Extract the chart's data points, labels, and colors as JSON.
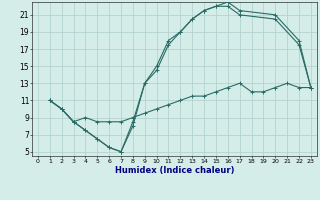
{
  "title": "",
  "xlabel": "Humidex (Indice chaleur)",
  "xlim": [
    -0.5,
    23.5
  ],
  "ylim": [
    4.5,
    22.5
  ],
  "xtick_labels": [
    "0",
    "1",
    "2",
    "3",
    "4",
    "5",
    "6",
    "7",
    "8",
    "9",
    "10",
    "11",
    "12",
    "13",
    "14",
    "15",
    "16",
    "17",
    "18",
    "19",
    "20",
    "21",
    "22",
    "23"
  ],
  "xtick_vals": [
    0,
    1,
    2,
    3,
    4,
    5,
    6,
    7,
    8,
    9,
    10,
    11,
    12,
    13,
    14,
    15,
    16,
    17,
    18,
    19,
    20,
    21,
    22,
    23
  ],
  "ytick_vals": [
    5,
    7,
    9,
    11,
    13,
    15,
    17,
    19,
    21
  ],
  "bg_color": "#d5ede8",
  "line_color": "#2a6b65",
  "grid_color": "#aed0cb",
  "line1_x": [
    1,
    2,
    3,
    4,
    5,
    6,
    7,
    8,
    9,
    10,
    11,
    12,
    13,
    14,
    15,
    16,
    17,
    20,
    22,
    23
  ],
  "line1_y": [
    11,
    10,
    8.5,
    7.5,
    6.5,
    5.5,
    5,
    8.5,
    13,
    15,
    18,
    19,
    20.5,
    21.5,
    22,
    22.5,
    21.5,
    21,
    18,
    12.5
  ],
  "line2_x": [
    1,
    2,
    3,
    4,
    5,
    6,
    7,
    8,
    9,
    10,
    11,
    12,
    13,
    14,
    15,
    16,
    17,
    20,
    22,
    23
  ],
  "line2_y": [
    11,
    10,
    8.5,
    7.5,
    6.5,
    5.5,
    5,
    8,
    13,
    14.5,
    17.5,
    19,
    20.5,
    21.5,
    22,
    22,
    21,
    20.5,
    17.5,
    12.5
  ],
  "line3_x": [
    1,
    2,
    3,
    4,
    5,
    6,
    7,
    8,
    9,
    10,
    11,
    12,
    13,
    14,
    15,
    16,
    17,
    18,
    19,
    20,
    21,
    22,
    23
  ],
  "line3_y": [
    11,
    10,
    8.5,
    9,
    8.5,
    8.5,
    8.5,
    9,
    9.5,
    10,
    10.5,
    11,
    11.5,
    11.5,
    12,
    12.5,
    13,
    12,
    12,
    12.5,
    13,
    12.5,
    12.5
  ]
}
